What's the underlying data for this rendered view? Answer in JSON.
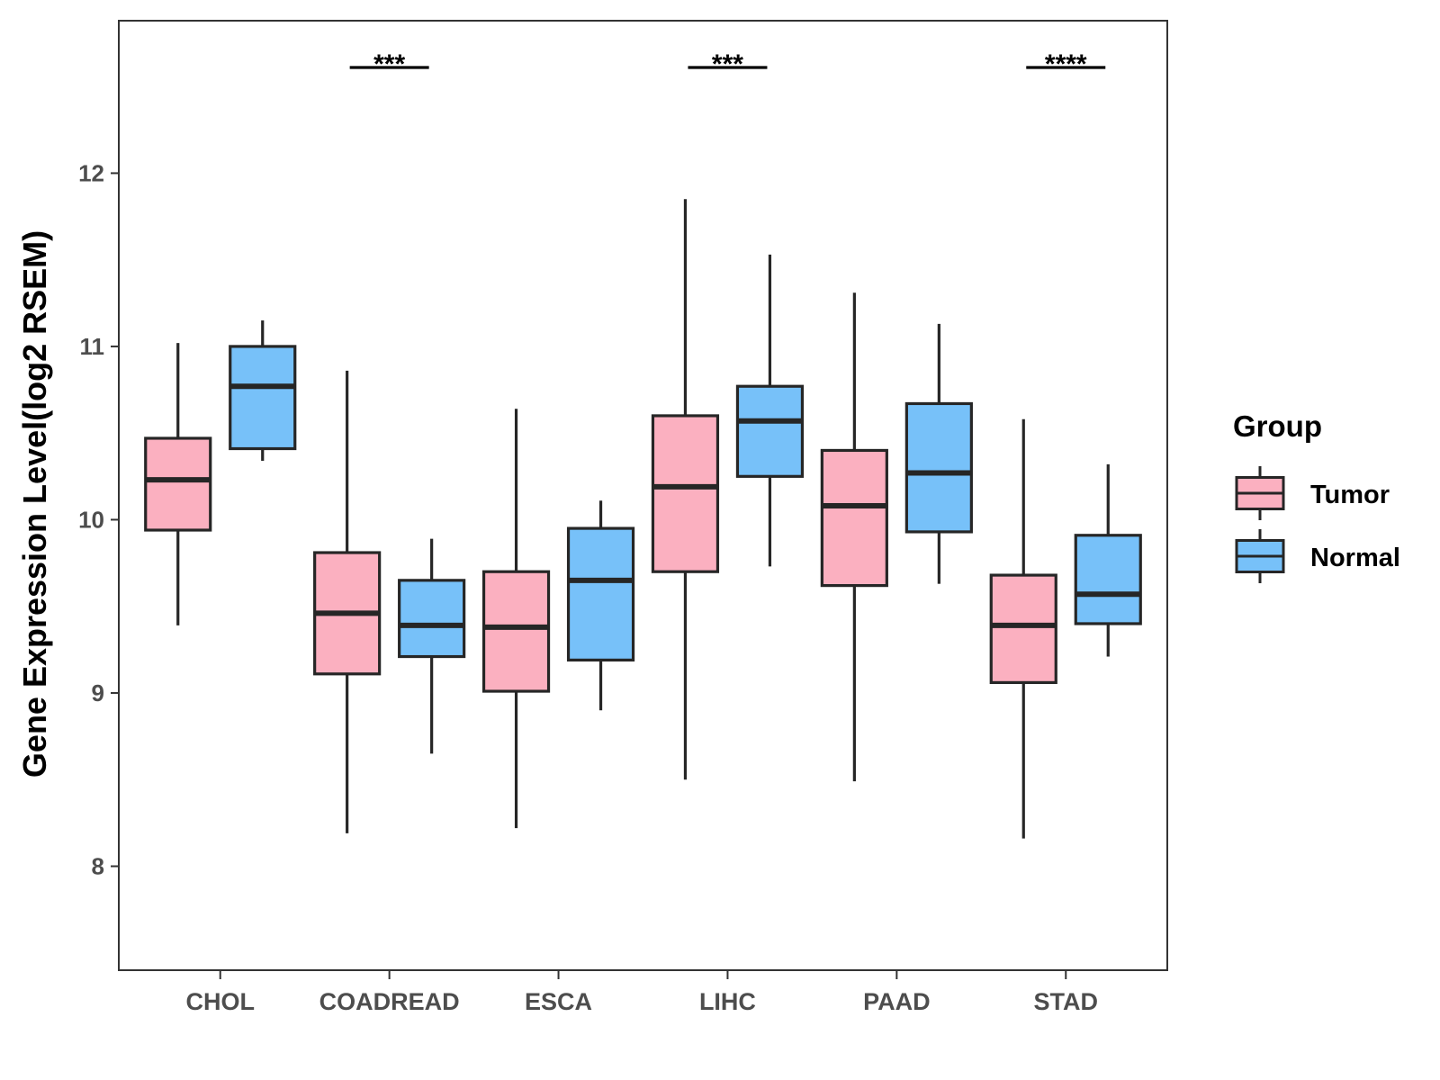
{
  "chart_data": {
    "type": "boxplot",
    "title": "",
    "xlabel": "",
    "ylabel": "Gene Expression Level(log2 RSEM)",
    "ylim": [
      7.4,
      12.88
    ],
    "yticks": [
      8,
      9,
      10,
      11,
      12
    ],
    "grid": false,
    "legend_position": "right",
    "categories": [
      "CHOL",
      "COADREAD",
      "ESCA",
      "LIHC",
      "PAAD",
      "STAD"
    ],
    "series": [
      {
        "name": "Tumor",
        "color": "#FBB0C0",
        "boxes": [
          {
            "min": 9.39,
            "q1": 9.94,
            "median": 10.23,
            "q3": 10.47,
            "max": 11.02
          },
          {
            "min": 8.19,
            "q1": 9.11,
            "median": 9.46,
            "q3": 9.81,
            "max": 10.86
          },
          {
            "min": 8.22,
            "q1": 9.01,
            "median": 9.38,
            "q3": 9.7,
            "max": 10.64
          },
          {
            "min": 8.5,
            "q1": 9.7,
            "median": 10.19,
            "q3": 10.6,
            "max": 11.85
          },
          {
            "min": 8.49,
            "q1": 9.62,
            "median": 10.08,
            "q3": 10.4,
            "max": 11.31
          },
          {
            "min": 8.16,
            "q1": 9.06,
            "median": 9.39,
            "q3": 9.68,
            "max": 10.58
          }
        ]
      },
      {
        "name": "Normal",
        "color": "#77C1F9",
        "boxes": [
          {
            "min": 10.34,
            "q1": 10.41,
            "median": 10.77,
            "q3": 11.0,
            "max": 11.15
          },
          {
            "min": 8.65,
            "q1": 9.21,
            "median": 9.39,
            "q3": 9.65,
            "max": 9.89
          },
          {
            "min": 8.9,
            "q1": 9.19,
            "median": 9.65,
            "q3": 9.95,
            "max": 10.11
          },
          {
            "min": 9.73,
            "q1": 10.25,
            "median": 10.57,
            "q3": 10.77,
            "max": 11.53
          },
          {
            "min": 9.63,
            "q1": 9.93,
            "median": 10.27,
            "q3": 10.67,
            "max": 11.13
          },
          {
            "min": 9.21,
            "q1": 9.4,
            "median": 9.57,
            "q3": 9.91,
            "max": 10.32
          }
        ]
      }
    ],
    "annotations": [
      {
        "category": "COADREAD",
        "text": "***"
      },
      {
        "category": "LIHC",
        "text": "***"
      },
      {
        "category": "STAD",
        "text": "****"
      }
    ],
    "legend": {
      "title": "Group",
      "entries": [
        "Tumor",
        "Normal"
      ]
    }
  }
}
